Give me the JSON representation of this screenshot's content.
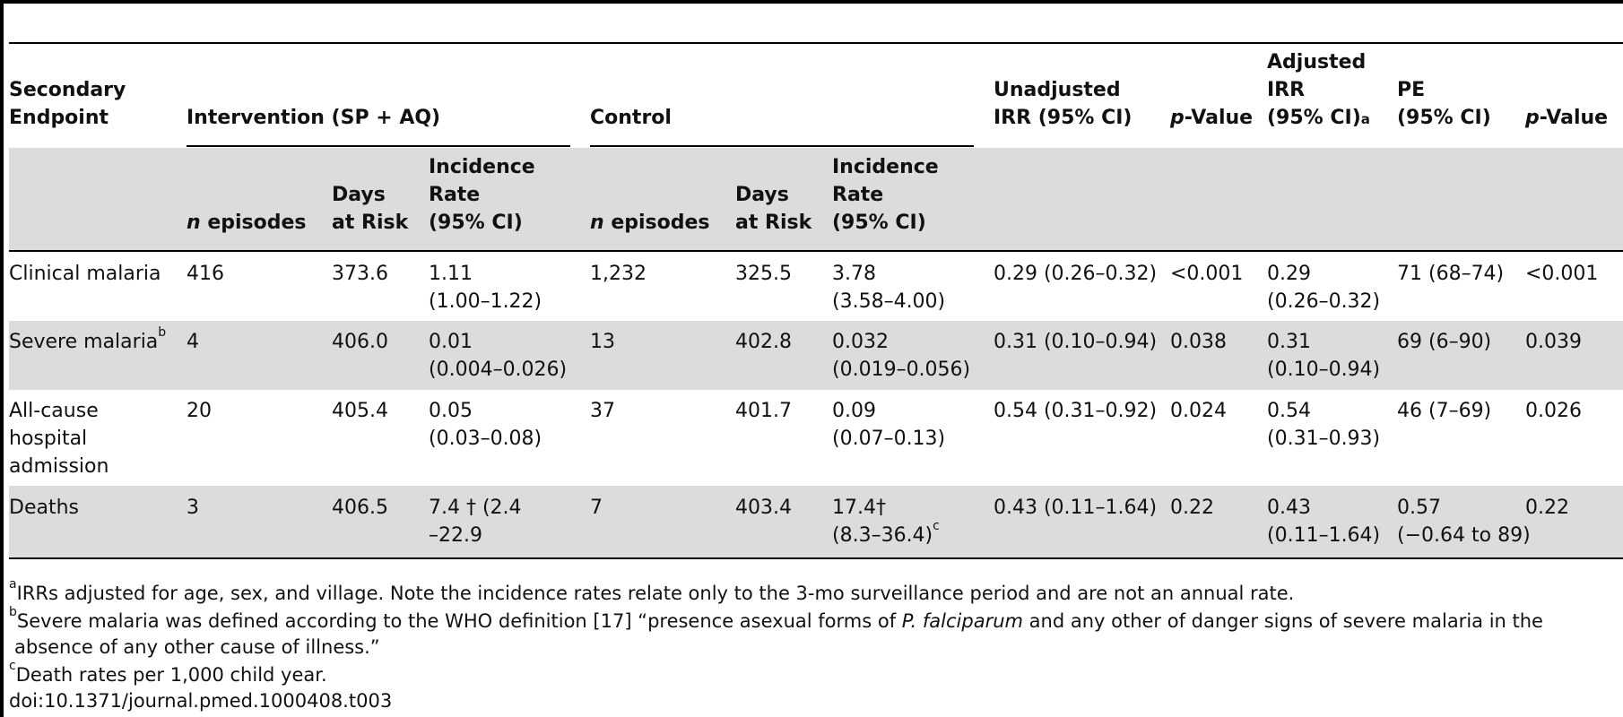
{
  "table": {
    "headers": {
      "secondary_endpoint": [
        "Secondary",
        "Endpoint"
      ],
      "intervention_group": "Intervention (SP + AQ)",
      "control_group": "Control",
      "unadjusted_irr": [
        "Unadjusted",
        "IRR (95% CI)"
      ],
      "p_value_1": "-Value",
      "p_value_p": "p",
      "adjusted_irr": [
        "Adjusted",
        "IRR",
        "(95% CI)"
      ],
      "adjusted_irr_note": "a",
      "pe": [
        "PE",
        "(95% CI)"
      ],
      "p_value_2": "-Value",
      "n_prefix": "n",
      "n_episodes": " episodes",
      "days_at_risk": [
        "Days",
        "at Risk"
      ],
      "incidence_rate": [
        "Incidence",
        "Rate",
        "(95% CI)"
      ]
    },
    "rows": [
      {
        "endpoint": [
          "Clinical malaria"
        ],
        "endpoint_sup": "",
        "int_n": "416",
        "int_days": "373.6",
        "int_rate": [
          "1.11",
          "(1.00–1.22)"
        ],
        "ctl_n": "1,232",
        "ctl_days": "325.5",
        "ctl_rate": [
          "3.78",
          "(3.58–4.00)"
        ],
        "ctl_rate_sup": "",
        "unadj": "0.29 (0.26–0.32)",
        "p1": "<0.001",
        "adj": [
          "0.29",
          "(0.26–0.32)"
        ],
        "pe": [
          "71 (68–74)"
        ],
        "p2": "<0.001"
      },
      {
        "endpoint": [
          "Severe malaria"
        ],
        "endpoint_sup": "b",
        "int_n": "4",
        "int_days": "406.0",
        "int_rate": [
          "0.01",
          "(0.004–0.026)"
        ],
        "ctl_n": "13",
        "ctl_days": "402.8",
        "ctl_rate": [
          "0.032",
          "(0.019–0.056)"
        ],
        "ctl_rate_sup": "",
        "unadj": "0.31 (0.10–0.94)",
        "p1": "0.038",
        "adj": [
          "0.31",
          "(0.10–0.94)"
        ],
        "pe": [
          "69 (6–90)"
        ],
        "p2": "0.039"
      },
      {
        "endpoint": [
          "All-cause",
          "hospital",
          "admission"
        ],
        "endpoint_sup": "",
        "int_n": "20",
        "int_days": "405.4",
        "int_rate": [
          "0.05",
          "(0.03–0.08)"
        ],
        "ctl_n": "37",
        "ctl_days": "401.7",
        "ctl_rate": [
          "0.09",
          "(0.07–0.13)"
        ],
        "ctl_rate_sup": "",
        "unadj": "0.54 (0.31–0.92)",
        "p1": "0.024",
        "adj": [
          "0.54",
          "(0.31–0.93)"
        ],
        "pe": [
          "46 (7–69)"
        ],
        "p2": "0.026"
      },
      {
        "endpoint": [
          "Deaths"
        ],
        "endpoint_sup": "",
        "int_n": "3",
        "int_days": "406.5",
        "int_rate": [
          "7.4 † (2.4",
          "–22.9"
        ],
        "ctl_n": "7",
        "ctl_days": "403.4",
        "ctl_rate": [
          "17.4†",
          "(8.3–36.4)"
        ],
        "ctl_rate_sup": "c",
        "unadj": "0.43 (0.11–1.64)",
        "p1": "0.22",
        "adj": [
          "0.43",
          "(0.11–1.64)"
        ],
        "pe": [
          "0.57",
          "(−0.64 to 89)"
        ],
        "p2": "0.22"
      }
    ]
  },
  "footnotes": {
    "a_mark": "a",
    "a_text": "IRRs adjusted for age, sex, and village. Note the incidence rates relate only to the 3-mo surveillance period and are not an annual rate.",
    "b_mark": "b",
    "b_text_1": "Severe malaria was defined according to the WHO definition [17] “presence asexual forms of ",
    "b_text_italic": "P. falciparum",
    "b_text_2": " and any other of danger signs of severe malaria in the",
    "b_text_3": "absence of any other cause of illness.”",
    "c_mark": "c",
    "c_text": "Death rates per 1,000 child year.",
    "doi": "doi:10.1371/journal.pmed.1000408.t003"
  }
}
